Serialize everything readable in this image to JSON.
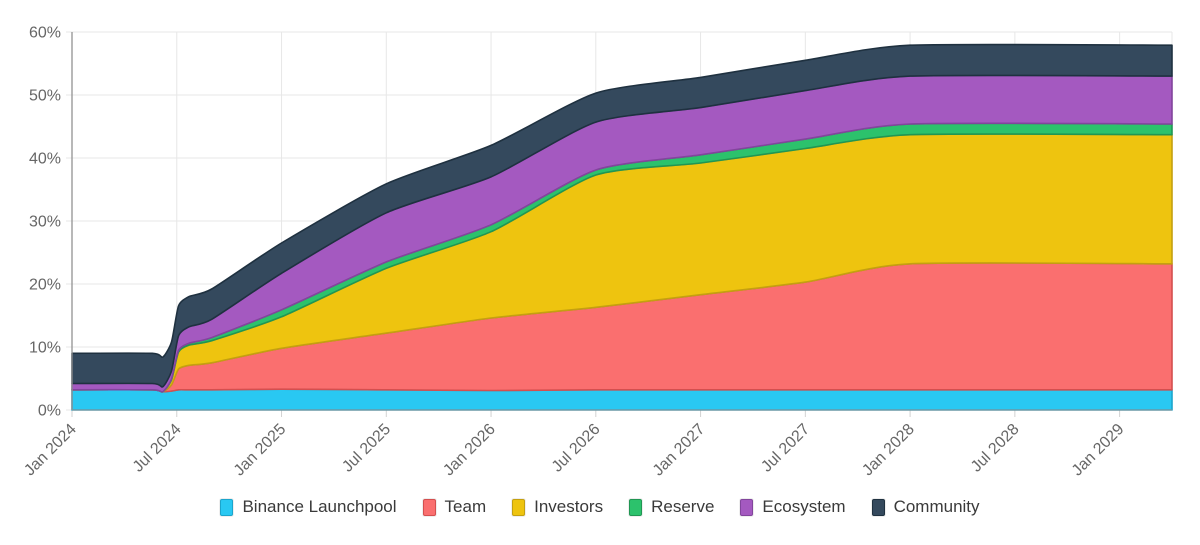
{
  "chart_data": {
    "type": "area",
    "stacked": true,
    "unit": "%",
    "title": "",
    "x_domain_months": [
      0,
      63
    ],
    "x_months_since_jan_2024": [
      0,
      4.6,
      5.2,
      5.7,
      6.1,
      6.7,
      8,
      12,
      18,
      24,
      30,
      36,
      42,
      48,
      63
    ],
    "series": [
      {
        "name": "Binance Launchpool",
        "slug": "binance-launchpool",
        "fill": "#29c8f2",
        "border": "#1ba5cc",
        "values": [
          3.2,
          3.2,
          2.9,
          3.0,
          3.2,
          3.2,
          3.2,
          3.3,
          3.2,
          3.1,
          3.2,
          3.2,
          3.2,
          3.2,
          3.2
        ]
      },
      {
        "name": "Team",
        "slug": "team",
        "fill": "#fa6f6f",
        "border": "#d44f4f",
        "values": [
          0,
          0,
          0,
          1.0,
          3.3,
          3.9,
          4.3,
          6.5,
          9.0,
          11.5,
          13.1,
          15.1,
          17.1,
          20.0,
          20.0
        ]
      },
      {
        "name": "Investors",
        "slug": "investors",
        "fill": "#eec40f",
        "border": "#c4a010",
        "values": [
          0,
          0,
          0,
          0.8,
          2.7,
          3.2,
          3.5,
          5.0,
          10.3,
          13.7,
          21.0,
          20.9,
          21.2,
          20.5,
          20.5
        ]
      },
      {
        "name": "Reserve",
        "slug": "reserve",
        "fill": "#2cc26c",
        "border": "#219653",
        "values": [
          0,
          0,
          0,
          0.1,
          0.25,
          0.3,
          0.5,
          1.1,
          1.0,
          1.1,
          0.8,
          1.3,
          1.5,
          1.7,
          1.7
        ]
      },
      {
        "name": "Ecosystem",
        "slug": "ecosystem",
        "fill": "#a459c0",
        "border": "#82459c",
        "values": [
          1.0,
          1.0,
          0.8,
          1.3,
          2.3,
          2.6,
          2.9,
          5.8,
          7.8,
          7.6,
          7.6,
          7.5,
          7.7,
          7.6,
          7.6
        ]
      },
      {
        "name": "Community",
        "slug": "community",
        "fill": "#34495d",
        "border": "#1f3140",
        "values": [
          4.8,
          4.8,
          4.7,
          4.6,
          4.75,
          4.8,
          4.8,
          4.8,
          4.6,
          5.0,
          4.6,
          4.8,
          4.8,
          4.9,
          4.9
        ]
      }
    ],
    "y_axis": {
      "min": 0,
      "max": 60,
      "step": 10,
      "tick_labels": [
        "0%",
        "10%",
        "20%",
        "30%",
        "40%",
        "50%",
        "60%"
      ]
    },
    "x_axis": {
      "tick_months": [
        0,
        6,
        12,
        18,
        24,
        30,
        36,
        42,
        48,
        54,
        60
      ],
      "tick_labels": [
        "Jan 2024",
        "Jul 2024",
        "Jan 2025",
        "Jul 2025",
        "Jan 2026",
        "Jul 2026",
        "Jan 2027",
        "Jul 2027",
        "Jan 2028",
        "Jul 2028",
        "Jan 2029"
      ]
    },
    "grid": true,
    "legend_position": "bottom"
  },
  "style": {
    "grid_color": "#e7e7e7",
    "tick_color": "#d2d2d2",
    "axis_color": "#929292",
    "axis_label_color": "#666666",
    "legend_text_color": "#3a3a3a",
    "background": "#ffffff"
  }
}
